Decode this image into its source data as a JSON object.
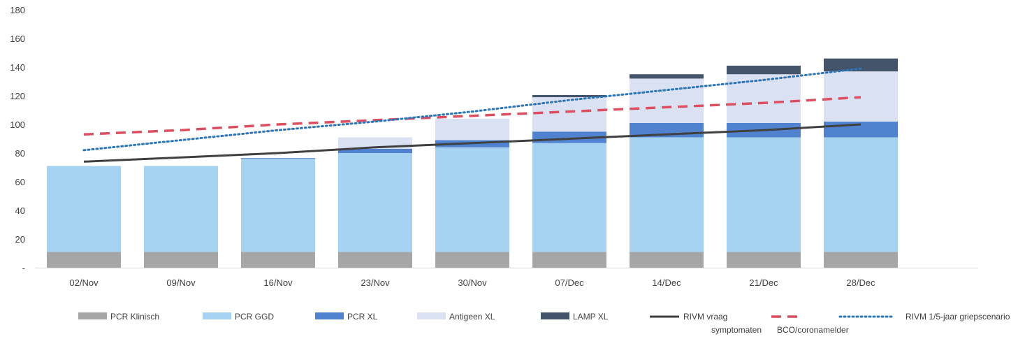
{
  "chart_data": {
    "type": "bar",
    "stacked": true,
    "categories": [
      "02/Nov",
      "09/Nov",
      "16/Nov",
      "23/Nov",
      "30/Nov",
      "07/Dec",
      "14/Dec",
      "21/Dec",
      "28/Dec"
    ],
    "ylim": [
      0,
      180
    ],
    "yticks": [
      0,
      20,
      40,
      60,
      80,
      100,
      120,
      140,
      160,
      180
    ],
    "ytick_labels": [
      "-",
      "20",
      "40",
      "60",
      "80",
      "100",
      "120",
      "140",
      "160",
      "180"
    ],
    "grid": false,
    "legend_position": "bottom",
    "series": [
      {
        "name": "PCR Klinisch",
        "color": "#a6a6a6",
        "values": [
          11,
          11,
          11,
          11,
          11,
          11,
          11,
          11,
          11
        ]
      },
      {
        "name": "PCR GGD",
        "color": "#a6d2f2",
        "values": [
          60,
          60,
          65,
          69,
          73,
          76,
          80,
          80,
          80
        ]
      },
      {
        "name": "PCR XL",
        "color": "#5082cf",
        "values": [
          0,
          0,
          0.5,
          3,
          5,
          8,
          10,
          10,
          11
        ]
      },
      {
        "name": "Antigeen XL",
        "color": "#dae1f3",
        "values": [
          0,
          0,
          0,
          8,
          15,
          24,
          31,
          34,
          35
        ]
      },
      {
        "name": "LAMP XL",
        "color": "#44546a",
        "values": [
          0,
          0,
          0,
          0,
          0,
          1.5,
          3,
          6,
          9
        ]
      }
    ],
    "lines": [
      {
        "name": "RIVM vraag symptomaten",
        "name_lines": [
          "RIVM vraag",
          "symptomaten"
        ],
        "color": "#404040",
        "style": "solid",
        "values": [
          74,
          77,
          80,
          84,
          87,
          90,
          93,
          96,
          100
        ]
      },
      {
        "name": "BCO/coronamelder",
        "name_lines": [
          "",
          "BCO/coronamelder"
        ],
        "color": "#dc4f61",
        "style": "dashed",
        "values": [
          93,
          96,
          100,
          103,
          106,
          109,
          112,
          115,
          119
        ]
      },
      {
        "name": "RIVM 1/5-jaar griepscenario",
        "name_lines": [
          "RIVM 1/5-jaar griepscenario"
        ],
        "color": "#2e75b6",
        "style": "dotted",
        "values": [
          82,
          89,
          96,
          102,
          109,
          117,
          124,
          131,
          139
        ]
      }
    ]
  }
}
